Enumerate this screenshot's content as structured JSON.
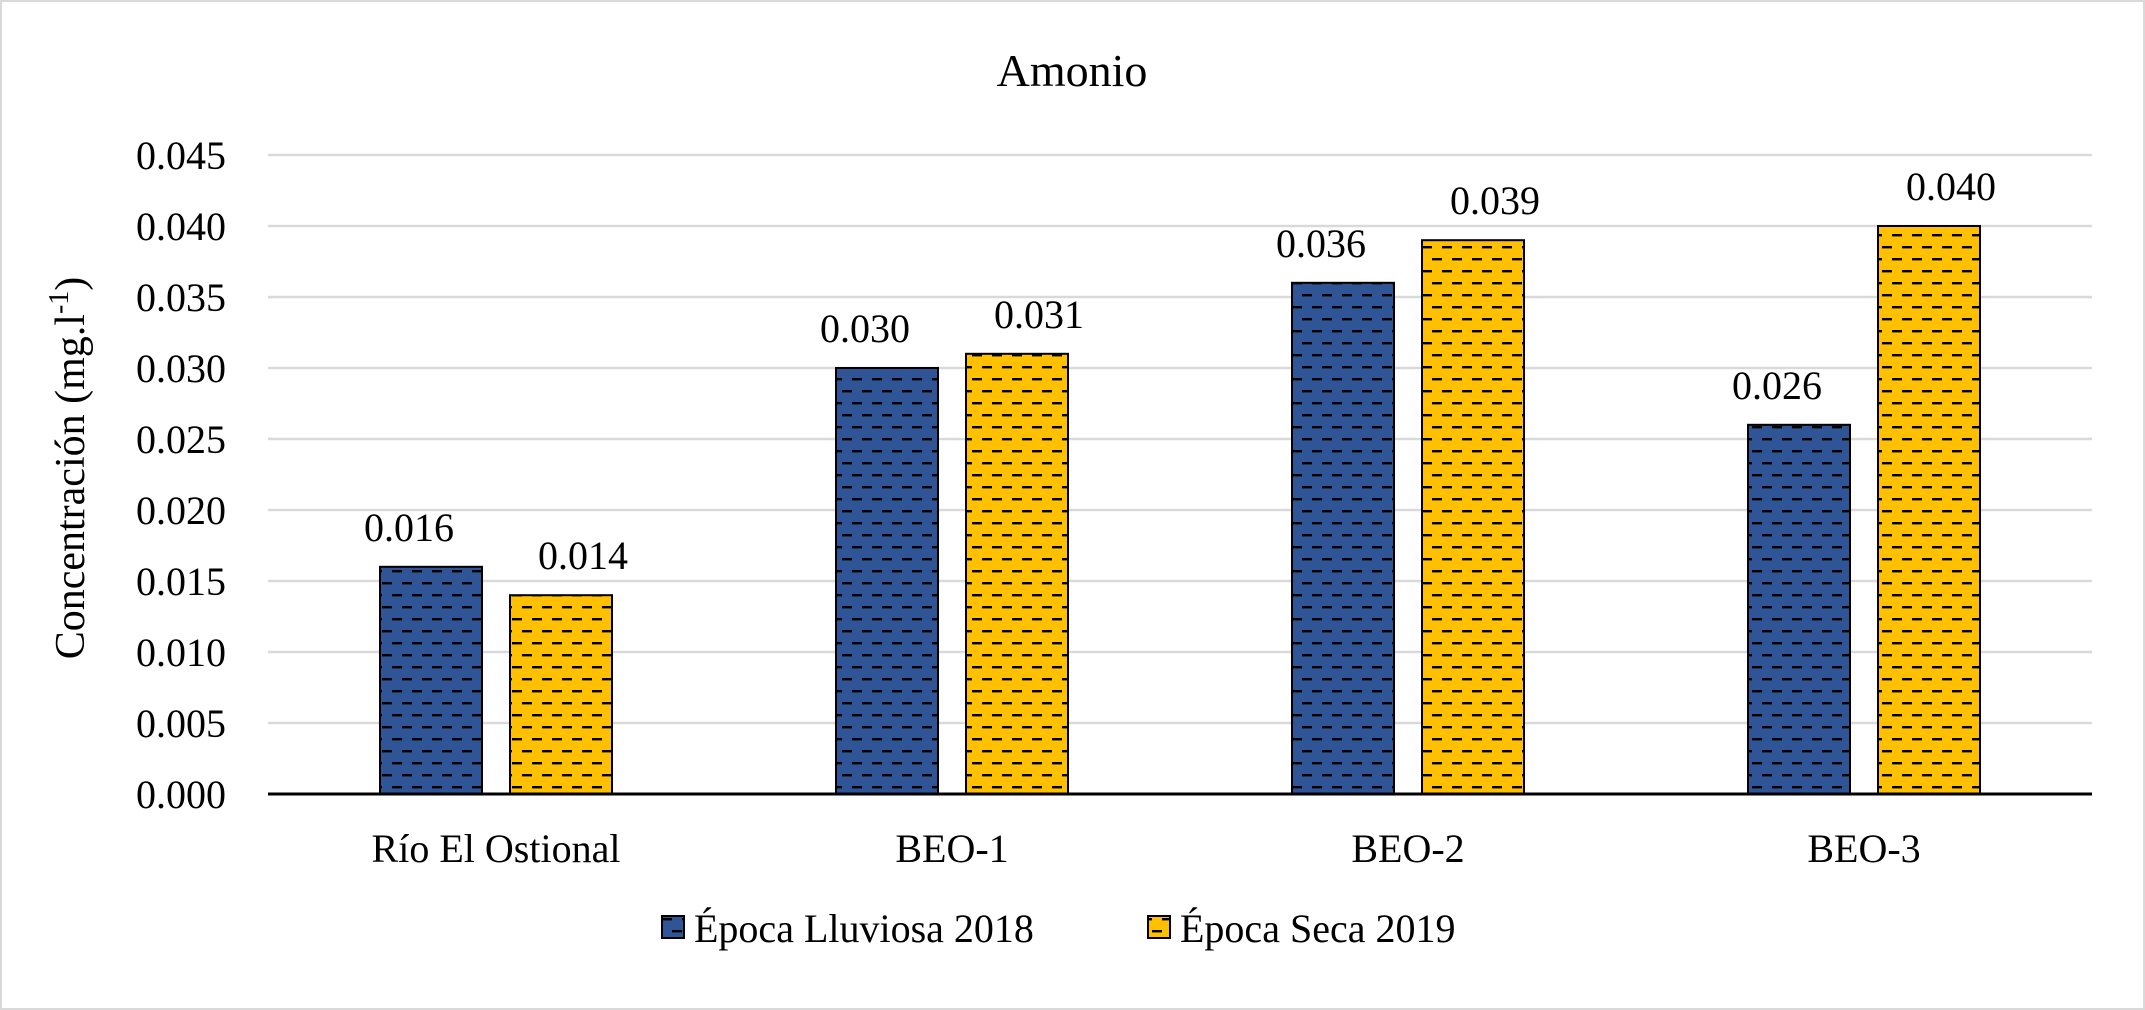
{
  "chart_data": {
    "type": "bar",
    "title": "Amonio",
    "xlabel": "",
    "ylabel": "Concentración (mg.l",
    "ylabel_superscript": "-1",
    "ylabel_suffix": ")",
    "ylim": [
      0,
      0.045
    ],
    "ytick_step": 0.005,
    "ytick_labels": [
      "0.000",
      "0.005",
      "0.010",
      "0.015",
      "0.020",
      "0.025",
      "0.030",
      "0.035",
      "0.040",
      "0.045"
    ],
    "grid": true,
    "legend_position": "bottom-center",
    "categories": [
      "Río El Ostional",
      "BEO-1",
      "BEO-2",
      "BEO-3"
    ],
    "series": [
      {
        "name": "Época Lluviosa 2018",
        "color": "#2F5597",
        "values": [
          0.016,
          0.03,
          0.036,
          0.026
        ],
        "labels": [
          "0.016",
          "0.030",
          "0.036",
          "0.026"
        ]
      },
      {
        "name": "Época Seca 2019",
        "color": "#FFC000",
        "values": [
          0.014,
          0.031,
          0.039,
          0.04
        ],
        "labels": [
          "0.014",
          "0.031",
          "0.039",
          "0.040"
        ]
      }
    ]
  },
  "colors": {
    "background": "#FFFFFF",
    "border": "#D9D9D9",
    "gridline": "#D9D9D9",
    "axis_line": "#000000",
    "pattern_dash": "#000000"
  }
}
